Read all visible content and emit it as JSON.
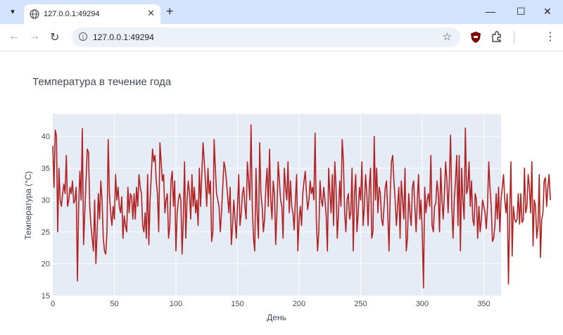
{
  "browser": {
    "tab_title": "127.0.0.1:49294",
    "url": "127.0.0.1:49294"
  },
  "chart_data": {
    "type": "line",
    "title": "Температура в течение года",
    "xlabel": "День",
    "ylabel": "Температура (°C)",
    "xlim": [
      0,
      364
    ],
    "ylim": [
      15,
      43.5
    ],
    "x_ticks": [
      0,
      50,
      100,
      150,
      200,
      250,
      300,
      350
    ],
    "y_ticks": [
      15,
      20,
      25,
      30,
      35,
      40
    ],
    "grid": true,
    "colors": {
      "line": "#b22222",
      "plot_bg": "#e5ecf6",
      "grid": "#ffffff"
    },
    "series": [
      {
        "x_start": 0,
        "x_step": 1,
        "values": [
          38.5,
          32,
          41,
          40,
          25,
          35,
          30,
          29,
          31,
          32.5,
          31,
          37,
          29,
          30,
          32,
          31,
          33,
          29.5,
          30,
          32,
          17.3,
          29,
          34.5,
          30,
          41.2,
          23,
          28,
          33,
          38,
          37.5,
          29,
          26,
          24,
          22,
          30,
          20,
          25,
          31,
          27,
          33,
          30,
          24,
          22,
          21.5,
          25,
          39.5,
          31,
          28,
          26,
          29,
          27,
          34,
          30,
          32,
          29,
          28,
          30.5,
          24,
          27.5,
          26,
          25,
          32,
          28,
          31,
          30.5,
          27,
          31,
          27,
          32,
          29,
          34,
          32,
          31,
          26,
          25,
          28,
          24,
          34,
          23,
          30,
          34,
          38,
          36,
          37,
          33,
          31,
          25,
          39,
          36,
          33,
          34,
          28,
          30,
          31,
          24,
          26,
          33,
          34.5,
          29,
          33,
          22,
          28,
          30,
          31,
          30,
          21.5,
          27,
          36,
          24,
          30,
          33,
          31,
          27,
          34,
          29,
          32,
          28,
          30,
          26,
          35,
          29,
          34,
          39,
          36,
          33,
          29,
          35,
          31,
          33,
          23.5,
          25,
          39.5,
          35,
          31,
          30,
          29,
          25,
          28,
          32,
          36,
          35,
          33,
          30.5,
          28,
          32,
          23,
          26,
          30,
          27,
          24,
          29,
          34,
          26,
          28,
          31,
          32,
          29,
          27,
          36,
          33,
          30,
          41.8,
          29,
          24,
          22,
          35,
          28,
          24,
          39,
          31,
          29,
          25,
          27,
          32,
          35,
          29,
          38,
          30,
          27,
          33,
          31,
          23,
          28,
          36,
          33,
          30,
          29,
          24,
          35,
          32,
          30,
          36,
          28,
          33,
          29,
          28,
          25.3,
          30,
          34,
          22,
          27,
          29,
          26,
          31,
          33,
          34.5,
          31,
          28.5,
          30,
          33,
          31,
          32,
          30,
          40.5,
          27,
          22,
          25,
          33,
          30,
          29,
          32,
          30,
          27.5,
          22,
          35,
          31,
          28,
          34,
          26,
          36,
          32,
          24,
          28,
          33,
          29,
          39.5,
          36,
          28,
          25,
          30,
          31,
          27,
          28,
          35,
          22,
          31,
          34,
          25,
          28,
          32,
          30,
          36,
          26,
          29,
          34,
          31,
          26,
          32,
          35,
          24,
          25,
          40,
          30,
          35,
          28,
          32,
          31,
          27,
          26,
          29,
          32,
          33,
          28,
          22,
          31,
          36,
          37,
          33,
          30,
          26,
          29,
          32,
          24,
          33,
          30,
          27,
          35,
          22,
          24,
          31,
          28,
          26,
          32,
          33,
          29,
          25,
          30,
          34,
          27,
          30,
          25,
          16.2,
          32,
          28,
          30,
          31,
          29,
          37,
          26,
          25,
          29,
          29.5,
          33,
          31,
          25,
          35,
          30,
          27,
          31,
          36,
          33,
          28,
          33,
          40.2,
          29,
          24,
          30,
          33,
          37,
          26,
          37,
          22,
          35,
          30,
          27,
          41.3,
          31,
          32,
          36,
          29,
          33,
          27,
          26,
          31,
          30,
          24,
          29,
          25,
          27,
          30,
          29,
          28,
          25.5,
          29,
          36,
          32,
          29,
          23.5,
          24,
          26,
          31,
          27,
          32,
          25,
          30,
          32,
          34,
          30,
          28,
          31,
          16.8,
          28,
          36,
          21.2,
          29,
          27,
          26.5,
          27,
          31,
          26.2,
          31,
          26.5,
          26.8,
          35,
          28,
          29,
          34,
          32,
          28,
          36,
          22.8,
          30,
          29,
          24,
          26,
          34,
          21,
          27,
          28,
          33,
          33.5,
          29,
          32,
          34,
          30
        ]
      }
    ]
  }
}
